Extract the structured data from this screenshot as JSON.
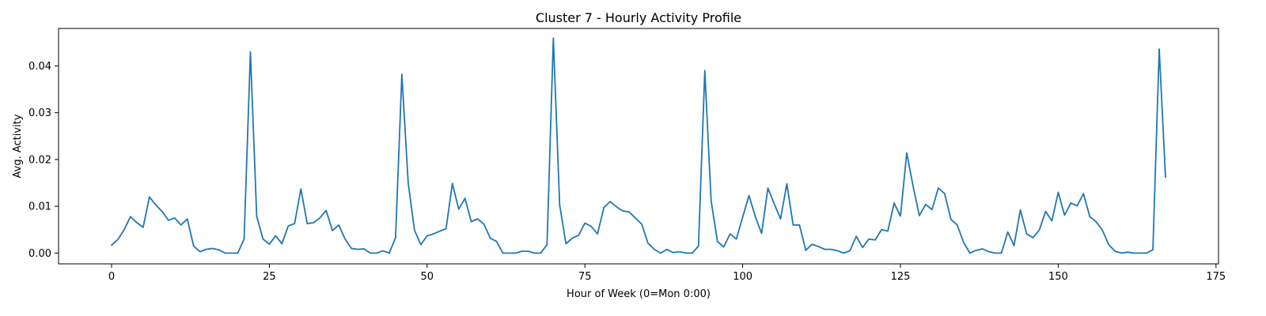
{
  "chart_data": {
    "type": "line",
    "title": "Cluster 7 - Hourly Activity Profile",
    "xlabel": "Hour of Week (0=Mon 0:00)",
    "ylabel": "Avg. Activity",
    "xlim": [
      -8.4,
      175.4
    ],
    "ylim": [
      -0.0023,
      0.048
    ],
    "xticks": [
      0,
      25,
      50,
      75,
      100,
      125,
      150,
      175
    ],
    "xtick_labels": [
      "0",
      "25",
      "50",
      "75",
      "100",
      "125",
      "150",
      "175"
    ],
    "yticks": [
      0.0,
      0.01,
      0.02,
      0.03,
      0.04
    ],
    "ytick_labels": [
      "0.00",
      "0.01",
      "0.02",
      "0.03",
      "0.04"
    ],
    "grid": false,
    "line_color": "#1f77b4",
    "series": [
      {
        "x": [
          0,
          1,
          2,
          3,
          4,
          5,
          6,
          7,
          8,
          9,
          10,
          11,
          12,
          13,
          14,
          15,
          16,
          17,
          18,
          19,
          20,
          21,
          22,
          23,
          24,
          25,
          26,
          27,
          28,
          29,
          30,
          31,
          32,
          33,
          34,
          35,
          36,
          37,
          38,
          39,
          40,
          41,
          42,
          43,
          44,
          45,
          46,
          47,
          48,
          49,
          50,
          51,
          52,
          53,
          54,
          55,
          56,
          57,
          58,
          59,
          60,
          61,
          62,
          63,
          64,
          65,
          66,
          67,
          68,
          69,
          70,
          71,
          72,
          73,
          74,
          75,
          76,
          77,
          78,
          79,
          80,
          81,
          82,
          83,
          84,
          85,
          86,
          87,
          88,
          89,
          90,
          91,
          92,
          93,
          94,
          95,
          96,
          97,
          98,
          99,
          100,
          101,
          102,
          103,
          104,
          105,
          106,
          107,
          108,
          109,
          110,
          111,
          112,
          113,
          114,
          115,
          116,
          117,
          118,
          119,
          120,
          121,
          122,
          123,
          124,
          125,
          126,
          127,
          128,
          129,
          130,
          131,
          132,
          133,
          134,
          135,
          136,
          137,
          138,
          139,
          140,
          141,
          142,
          143,
          144,
          145,
          146,
          147,
          148,
          149,
          150,
          151,
          152,
          153,
          154,
          155,
          156,
          157,
          158,
          159,
          160,
          161,
          162,
          163,
          164,
          165,
          166,
          167
        ],
        "values": [
          0.0017,
          0.0029,
          0.005,
          0.0078,
          0.0065,
          0.0055,
          0.012,
          0.0103,
          0.0089,
          0.007,
          0.0075,
          0.006,
          0.0073,
          0.0015,
          0.0003,
          0.0008,
          0.001,
          0.0007,
          0.0,
          0.0,
          0.0,
          0.003,
          0.043,
          0.0078,
          0.003,
          0.0019,
          0.0037,
          0.002,
          0.0058,
          0.0063,
          0.0137,
          0.0063,
          0.0065,
          0.0075,
          0.0091,
          0.0048,
          0.006,
          0.003,
          0.001,
          0.0008,
          0.0009,
          0.0,
          0.0,
          0.0005,
          0.0,
          0.0033,
          0.0382,
          0.015,
          0.0049,
          0.0018,
          0.0037,
          0.0041,
          0.0047,
          0.0052,
          0.0149,
          0.0094,
          0.0117,
          0.0067,
          0.0073,
          0.0062,
          0.0032,
          0.0025,
          0.0,
          0.0,
          0.0,
          0.0004,
          0.0004,
          0.0,
          0.0,
          0.0018,
          0.0459,
          0.0103,
          0.002,
          0.0032,
          0.0038,
          0.0064,
          0.0057,
          0.0041,
          0.0097,
          0.011,
          0.0099,
          0.009,
          0.0088,
          0.0075,
          0.0062,
          0.0021,
          0.0008,
          0.0,
          0.0008,
          0.0001,
          0.0003,
          0.0,
          0.0,
          0.0015,
          0.039,
          0.0112,
          0.0025,
          0.0013,
          0.0041,
          0.003,
          0.0077,
          0.0123,
          0.0078,
          0.0042,
          0.0139,
          0.0105,
          0.0073,
          0.0148,
          0.006,
          0.006,
          0.0006,
          0.0019,
          0.0014,
          0.0008,
          0.0008,
          0.0005,
          0.0,
          0.0005,
          0.0036,
          0.0012,
          0.003,
          0.0028,
          0.005,
          0.0047,
          0.0107,
          0.0079,
          0.0214,
          0.0143,
          0.008,
          0.0104,
          0.0093,
          0.0139,
          0.0127,
          0.0072,
          0.006,
          0.0023,
          0.0,
          0.0006,
          0.0009,
          0.0003,
          0.0,
          0.0,
          0.0045,
          0.0016,
          0.0092,
          0.0041,
          0.0033,
          0.0049,
          0.0089,
          0.0069,
          0.013,
          0.0081,
          0.0107,
          0.0101,
          0.0127,
          0.0078,
          0.0067,
          0.0049,
          0.0018,
          0.0004,
          0.0,
          0.0002,
          0.0,
          0.0,
          0.0,
          0.0007,
          0.0436,
          0.0162
        ]
      }
    ]
  }
}
